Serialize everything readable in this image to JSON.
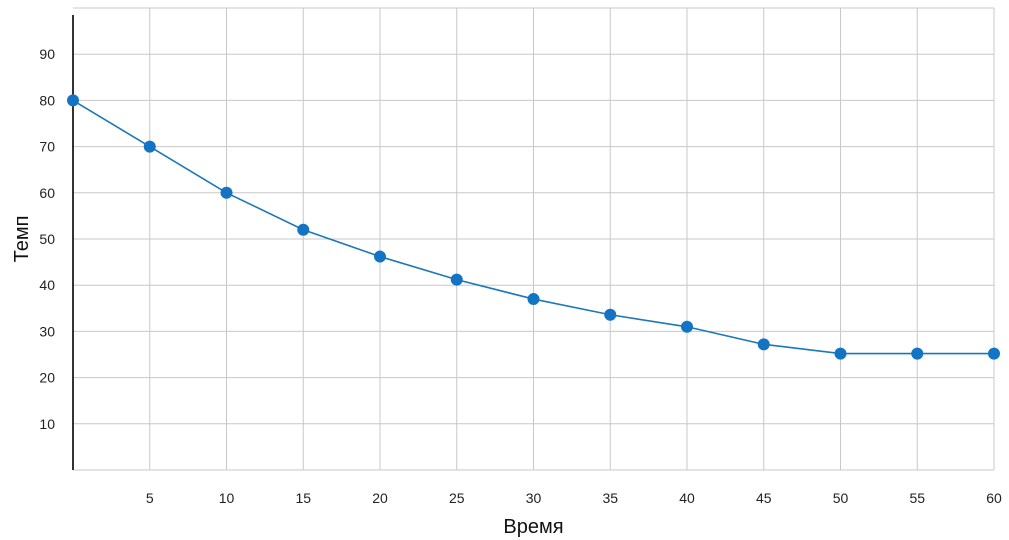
{
  "chart_data": {
    "type": "line",
    "title": "",
    "xlabel": "Время",
    "ylabel": "Темп",
    "x": [
      0,
      5,
      10,
      15,
      20,
      25,
      30,
      35,
      40,
      45,
      50,
      55,
      60
    ],
    "series": [
      {
        "values": [
          80,
          70,
          60,
          52,
          46.2,
          41.2,
          37,
          33.6,
          31,
          27.2,
          25.2,
          25.2,
          25.2
        ]
      }
    ],
    "xlim": [
      0,
      60
    ],
    "ylim": [
      0,
      100
    ],
    "xticks": [
      5,
      10,
      15,
      20,
      25,
      30,
      35,
      40,
      45,
      50,
      55,
      60
    ],
    "xtick_labels": [
      "5",
      "10",
      "15",
      "20",
      "25",
      "30",
      "35",
      "40",
      "45",
      "50",
      "55",
      "60"
    ],
    "yticks": [
      10,
      20,
      30,
      40,
      50,
      60,
      70,
      80,
      90
    ],
    "ytick_labels": [
      "10",
      "20",
      "30",
      "40",
      "50",
      "60",
      "70",
      "80",
      "90"
    ],
    "grid": true,
    "legend": "none",
    "colors": {
      "line": "#1c78b8",
      "marker": "#1474c4",
      "grid": "#c8c8c8",
      "axis": "#000000"
    }
  }
}
